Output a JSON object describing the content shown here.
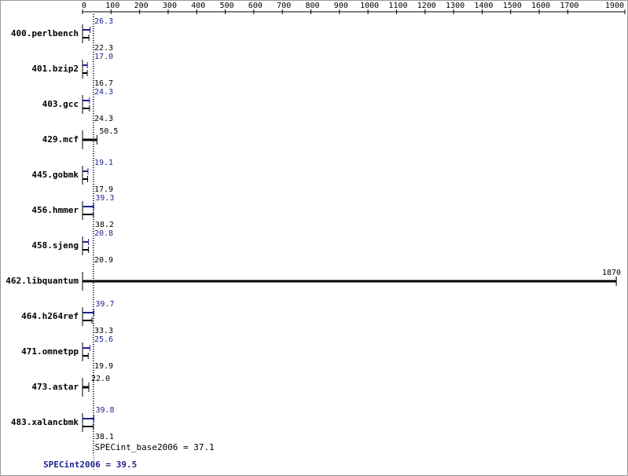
{
  "chart_data": {
    "type": "bar",
    "categories": [
      "400.perlbench",
      "401.bzip2",
      "403.gcc",
      "429.mcf",
      "445.gobmk",
      "456.hmmer",
      "458.sjeng",
      "462.libquantum",
      "464.h264ref",
      "471.omnetpp",
      "473.astar",
      "483.xalancbmk"
    ],
    "series": [
      {
        "color": "#1f1f8f",
        "values": [
          26.3,
          17.0,
          24.3,
          null,
          19.1,
          39.3,
          20.8,
          null,
          39.7,
          25.6,
          null,
          39.8
        ],
        "value_labels": [
          "26.3",
          "17.0",
          "24.3",
          null,
          "19.1",
          "39.3",
          "20.8",
          null,
          "39.7",
          "25.6",
          null,
          "39.8"
        ]
      },
      {
        "color": "#000000",
        "values": [
          22.3,
          16.7,
          24.3,
          50.5,
          17.9,
          38.2,
          20.9,
          1870,
          33.3,
          19.9,
          22.0,
          38.1
        ],
        "value_labels": [
          "22.3",
          "16.7",
          "24.3",
          "50.5",
          "17.9",
          "38.2",
          "20.9",
          "1870",
          "33.3",
          "19.9",
          "22.0",
          "38.1"
        ]
      }
    ],
    "xlim": [
      0,
      1900
    ],
    "xticks": [
      0,
      100,
      200,
      300,
      400,
      500,
      600,
      700,
      800,
      900,
      1000,
      1100,
      1200,
      1300,
      1400,
      1500,
      1600,
      1700,
      1900
    ],
    "reference_lines": [
      {
        "label": "SPECint_base2006 = 37.1",
        "value": 37.1,
        "color": "#000000"
      },
      {
        "label": "SPECint2006 = 39.5",
        "value": 39.5,
        "color": "#1f1f8f"
      }
    ]
  }
}
